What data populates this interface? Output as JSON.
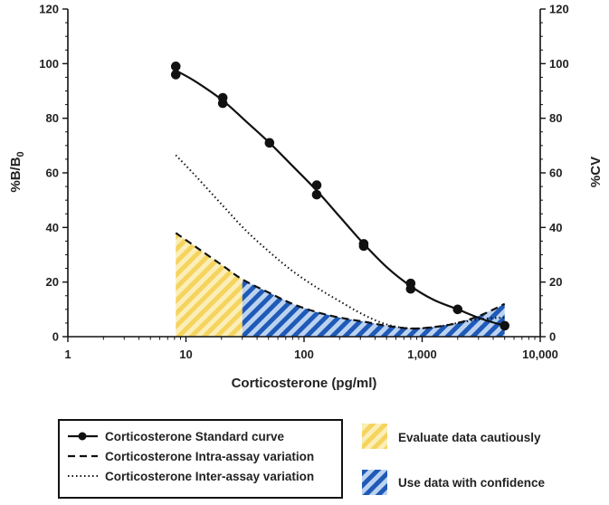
{
  "chart_data": {
    "type": "line",
    "x_scale": "log",
    "xlim": [
      1,
      10000
    ],
    "ylim": [
      0,
      120
    ],
    "y2lim": [
      0,
      120
    ],
    "xlabel": "Corticosterone (pg/ml)",
    "ylabel_main": "%B/B",
    "ylabel_sub": "0",
    "y2label": "%CV",
    "x_ticks": [
      {
        "value": 1,
        "label": "1"
      },
      {
        "value": 10,
        "label": "10"
      },
      {
        "value": 100,
        "label": "100"
      },
      {
        "value": 1000,
        "label": "1,000"
      },
      {
        "value": 10000,
        "label": "10,000"
      }
    ],
    "y_ticks": [
      0,
      20,
      40,
      60,
      80,
      100,
      120
    ],
    "y_tick_labels": [
      "0",
      "20",
      "40",
      "60",
      "80",
      "100",
      "120"
    ],
    "y2_tick_labels": [
      "0",
      "20",
      "40",
      "60",
      "80",
      "100",
      "120"
    ],
    "standard_points": [
      {
        "x": 8.2,
        "y": 99
      },
      {
        "x": 8.2,
        "y": 96
      },
      {
        "x": 20.5,
        "y": 87.5
      },
      {
        "x": 20.5,
        "y": 85.5
      },
      {
        "x": 51,
        "y": 71
      },
      {
        "x": 128,
        "y": 55.5
      },
      {
        "x": 128,
        "y": 52
      },
      {
        "x": 320,
        "y": 34
      },
      {
        "x": 320,
        "y": 33.2
      },
      {
        "x": 800,
        "y": 19.5
      },
      {
        "x": 800,
        "y": 17.5
      },
      {
        "x": 2000,
        "y": 10
      },
      {
        "x": 5000,
        "y": 4
      }
    ],
    "series": [
      {
        "name": "Corticosterone Standard curve",
        "style": "solid-with-markers",
        "x": [
          8.2,
          12,
          20.5,
          32,
          51,
          80,
          128,
          200,
          320,
          500,
          800,
          1250,
          2000,
          3200,
          5000
        ],
        "y": [
          97.5,
          93.5,
          86.5,
          79,
          71,
          62.5,
          53.5,
          44,
          34,
          25.5,
          18.5,
          13.5,
          10,
          6.5,
          4
        ]
      },
      {
        "name": "Corticosterone Intra-assay variation",
        "style": "dashed",
        "x": [
          8.2,
          12,
          20.5,
          30,
          51,
          80,
          128,
          200,
          320,
          500,
          800,
          1250,
          2000,
          3200,
          5000
        ],
        "y": [
          38,
          33,
          26,
          21,
          16,
          12,
          9,
          7,
          5.5,
          4,
          3,
          3.5,
          5,
          8,
          12
        ]
      },
      {
        "name": "Corticosterone Inter-assay variation",
        "style": "dotted",
        "x": [
          8.2,
          12,
          20.5,
          32,
          51,
          80,
          128,
          200,
          320,
          500,
          800,
          1250,
          2000,
          3200,
          5000
        ],
        "y": [
          66.5,
          59,
          48,
          39,
          31,
          24,
          18,
          13,
          8,
          4.5,
          3,
          3.5,
          5,
          6.5,
          7
        ]
      }
    ],
    "regions": [
      {
        "name": "Evaluate data cautiously",
        "x_from": 8.2,
        "x_to": 30,
        "color": "#f5d45e",
        "pattern": "hatch-yellow"
      },
      {
        "name": "Use data with confidence",
        "x_from": 30,
        "x_to": 5000,
        "color": "#1f5ab8",
        "pattern": "hatch-blue"
      }
    ],
    "grid": false
  },
  "legend": {
    "lines": [
      {
        "label": "Corticosterone Standard curve",
        "style": "solid-with-markers"
      },
      {
        "label": "Corticosterone Intra-assay variation",
        "style": "dashed"
      },
      {
        "label": "Corticosterone Inter-assay variation",
        "style": "dotted"
      }
    ],
    "swatches": [
      {
        "label": "Evaluate data cautiously",
        "pattern": "hatch-yellow"
      },
      {
        "label": "Use data with confidence",
        "pattern": "hatch-blue"
      }
    ]
  }
}
